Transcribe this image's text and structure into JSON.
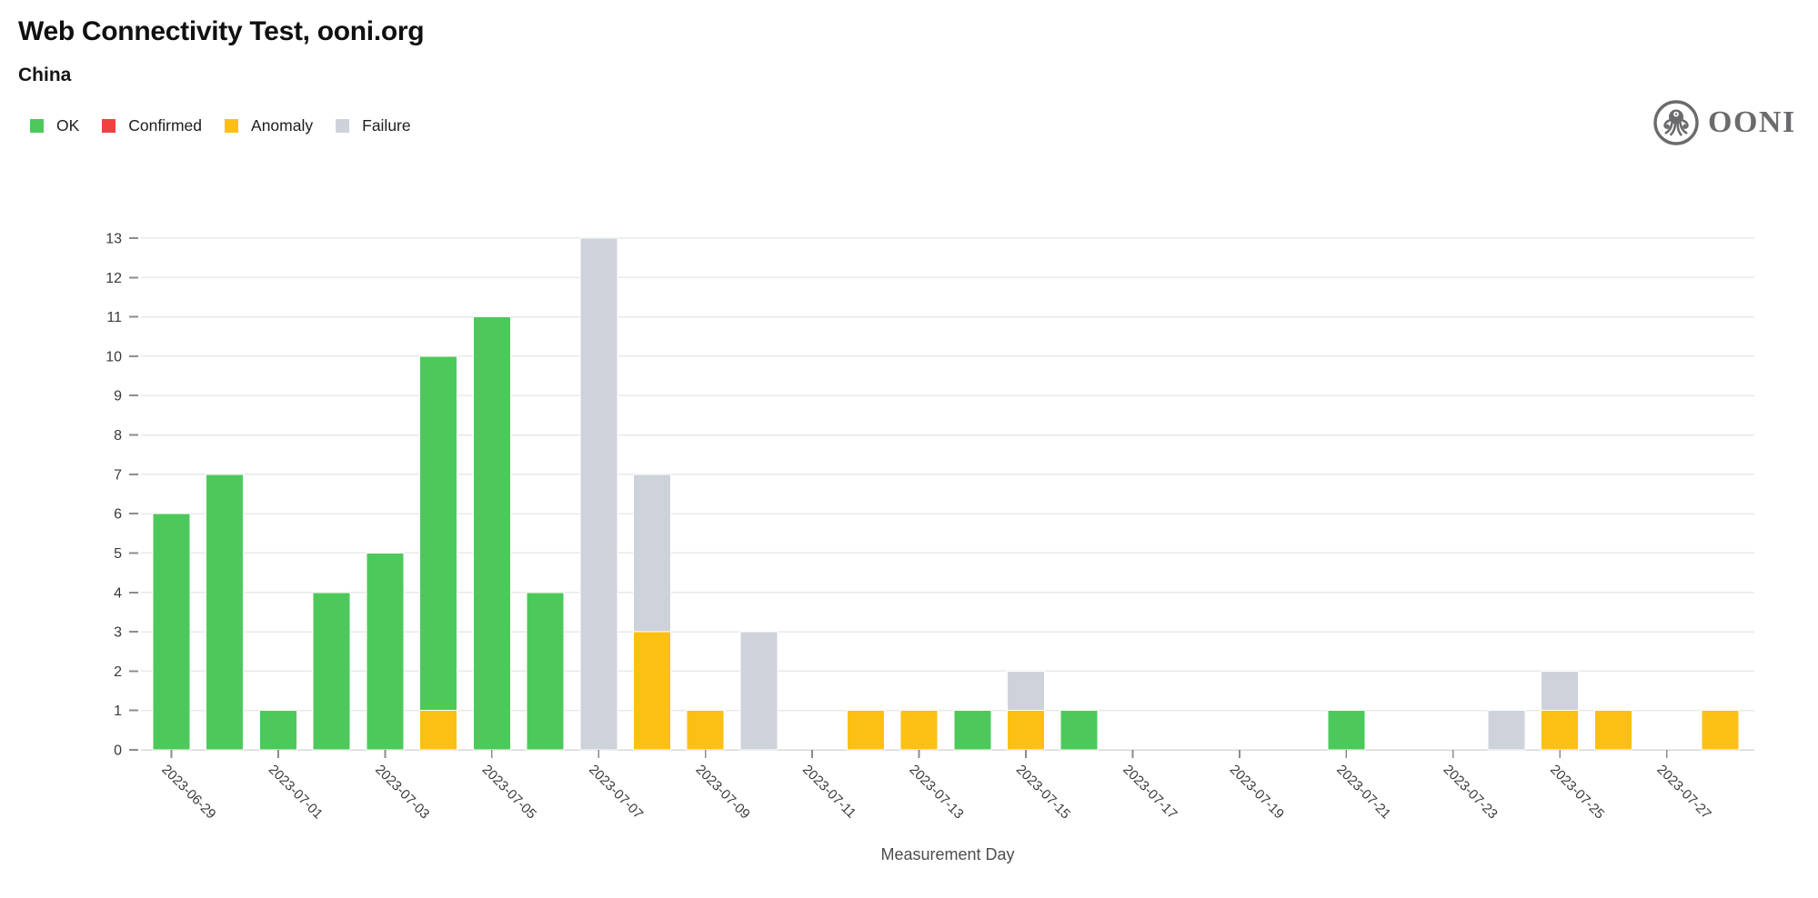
{
  "header": {
    "title": "Web Connectivity Test, ooni.org",
    "subtitle": "China"
  },
  "logo": {
    "text": "OONI"
  },
  "chart_data": {
    "type": "bar",
    "stacked": true,
    "title": "Web Connectivity Test, ooni.org",
    "subtitle": "China",
    "xlabel": "Measurement Day",
    "ylabel": "",
    "ylim": [
      0,
      13
    ],
    "grid": true,
    "legend_position": "top-left",
    "yticks": [
      0,
      1,
      2,
      3,
      4,
      5,
      6,
      7,
      8,
      9,
      10,
      11,
      12,
      13
    ],
    "xticks": [
      "2023-06-29",
      "2023-07-01",
      "2023-07-03",
      "2023-07-05",
      "2023-07-07",
      "2023-07-09",
      "2023-07-11",
      "2023-07-13",
      "2023-07-15",
      "2023-07-17",
      "2023-07-19",
      "2023-07-21",
      "2023-07-23",
      "2023-07-25",
      "2023-07-27"
    ],
    "categories": [
      "2023-06-29",
      "2023-06-30",
      "2023-07-01",
      "2023-07-02",
      "2023-07-03",
      "2023-07-04",
      "2023-07-05",
      "2023-07-06",
      "2023-07-07",
      "2023-07-08",
      "2023-07-09",
      "2023-07-10",
      "2023-07-11",
      "2023-07-12",
      "2023-07-13",
      "2023-07-14",
      "2023-07-15",
      "2023-07-16",
      "2023-07-17",
      "2023-07-18",
      "2023-07-19",
      "2023-07-20",
      "2023-07-21",
      "2023-07-22",
      "2023-07-23",
      "2023-07-24",
      "2023-07-25",
      "2023-07-26",
      "2023-07-27",
      "2023-07-28"
    ],
    "stack_order": [
      "Anomaly",
      "Confirmed",
      "Failure",
      "OK"
    ],
    "series": [
      {
        "name": "OK",
        "color": "#4DC95B",
        "values": [
          6,
          7,
          1,
          4,
          5,
          9,
          11,
          4,
          0,
          0,
          0,
          0,
          0,
          0,
          0,
          1,
          0,
          1,
          0,
          0,
          0,
          0,
          1,
          0,
          0,
          0,
          0,
          0,
          0,
          0
        ]
      },
      {
        "name": "Confirmed",
        "color": "#F04141",
        "values": [
          0,
          0,
          0,
          0,
          0,
          0,
          0,
          0,
          0,
          0,
          0,
          0,
          0,
          0,
          0,
          0,
          0,
          0,
          0,
          0,
          0,
          0,
          0,
          0,
          0,
          0,
          0,
          0,
          0,
          0
        ]
      },
      {
        "name": "Anomaly",
        "color": "#FBC013",
        "values": [
          0,
          0,
          0,
          0,
          0,
          1,
          0,
          0,
          0,
          3,
          1,
          0,
          0,
          1,
          1,
          0,
          1,
          0,
          0,
          0,
          0,
          0,
          0,
          0,
          0,
          0,
          1,
          1,
          0,
          1
        ]
      },
      {
        "name": "Failure",
        "color": "#CED3DB",
        "values": [
          0,
          0,
          0,
          0,
          0,
          0,
          0,
          0,
          13,
          4,
          0,
          3,
          0,
          0,
          0,
          0,
          1,
          0,
          0,
          0,
          0,
          0,
          0,
          0,
          0,
          1,
          1,
          0,
          0,
          0
        ]
      }
    ]
  }
}
